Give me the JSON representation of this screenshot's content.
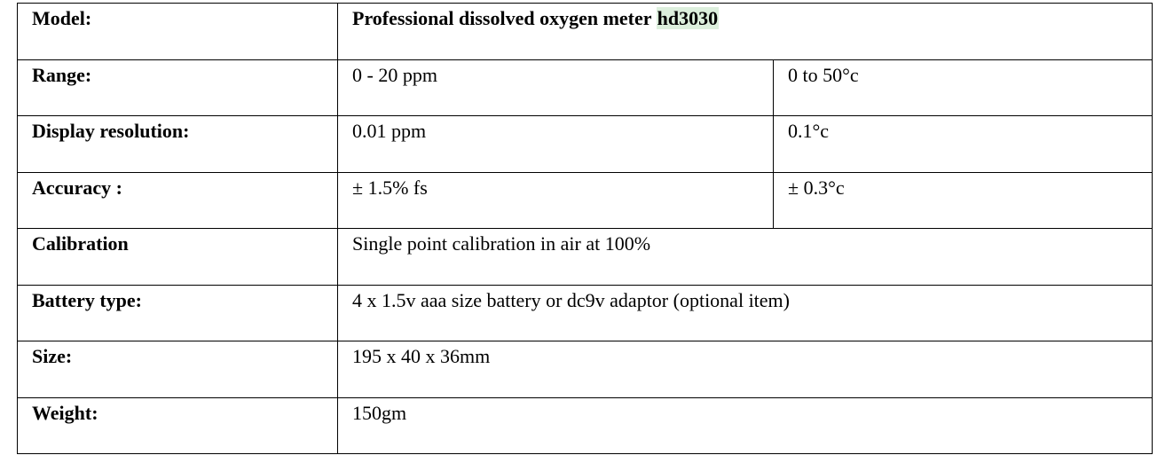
{
  "table": {
    "model": {
      "label": "Model:",
      "value_prefix": "Professional dissolved oxygen meter ",
      "value_highlight": "hd3030"
    },
    "range": {
      "label": "Range:",
      "value1": "0 - 20 ppm",
      "value2": "0 to 50°c"
    },
    "display_resolution": {
      "label": "Display resolution:",
      "value1": "0.01 ppm",
      "value2": "0.1°c"
    },
    "accuracy": {
      "label": "Accuracy :",
      "value1": "± 1.5% fs",
      "value2": "± 0.3°c"
    },
    "calibration": {
      "label": "Calibration",
      "value": "Single point calibration in air at 100%"
    },
    "battery_type": {
      "label": "Battery type:",
      "value": "4 x 1.5v aaa size battery or dc9v adaptor (optional item)"
    },
    "size": {
      "label": "Size:",
      "value": "195 x 40 x 36mm"
    },
    "weight": {
      "label": "Weight:",
      "value": "150gm"
    }
  },
  "colors": {
    "highlight": "#dcefdc",
    "border": "#000000",
    "text": "#000000"
  }
}
